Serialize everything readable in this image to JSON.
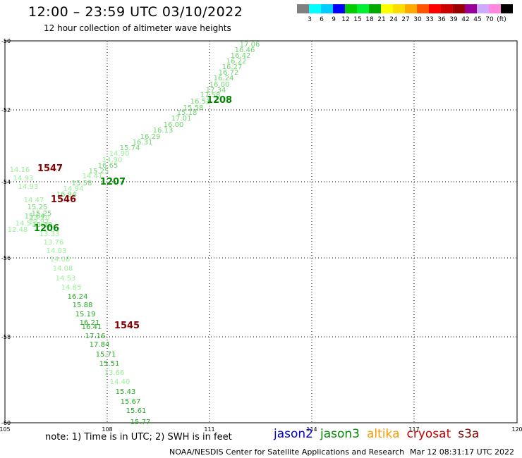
{
  "header": {
    "title": "12:00 – 23:59 UTC 03/10/2022",
    "subtitle": "12 hour collection of altimeter wave heights"
  },
  "colorbar": {
    "colors": [
      "#808080",
      "#00ffff",
      "#00ccff",
      "#0000ff",
      "#00cc00",
      "#00ee33",
      "#00aa00",
      "#ffff00",
      "#ffdd00",
      "#ffaa00",
      "#ff5500",
      "#ff0000",
      "#cc0000",
      "#990000",
      "#990099",
      "#ccaaff",
      "#ff88dd",
      "#000000"
    ],
    "labels": [
      "3",
      "6",
      "9",
      "12",
      "15",
      "18",
      "21",
      "24",
      "27",
      "30",
      "33",
      "36",
      "39",
      "42",
      "45",
      "70",
      "(ft)"
    ]
  },
  "map": {
    "lat_labels": [
      "-50",
      "-52",
      "-54",
      "-56",
      "-58",
      "-60"
    ],
    "lon_labels": [
      "105",
      "108",
      "111",
      "114",
      "117",
      "120"
    ]
  },
  "track_points": [
    {
      "text": "17.06",
      "color": "#6cd66c"
    },
    {
      "text": "16.46",
      "color": "#6cd66c"
    },
    {
      "text": "16.42",
      "color": "#6cd66c"
    },
    {
      "text": "16.22",
      "color": "#6cd66c"
    },
    {
      "text": "16.27",
      "color": "#6cd66c"
    },
    {
      "text": "16.72",
      "color": "#6cd66c"
    },
    {
      "text": "16.24",
      "color": "#6cd66c"
    },
    {
      "text": "16.00",
      "color": "#6cd66c"
    },
    {
      "text": "17.34",
      "color": "#6cd66c"
    },
    {
      "text": "17.58",
      "color": "#6cd66c"
    },
    {
      "text": "16.51",
      "color": "#6cd66c"
    },
    {
      "text": "15.58",
      "color": "#6cd66c"
    },
    {
      "text": "15.18",
      "color": "#6cd66c"
    },
    {
      "text": "17.01",
      "color": "#6cd66c"
    },
    {
      "text": "16.00",
      "color": "#6cd66c"
    },
    {
      "text": "16.13",
      "color": "#6cd66c"
    },
    {
      "text": "16.29",
      "color": "#6cd66c"
    },
    {
      "text": "16.31",
      "color": "#6cd66c"
    },
    {
      "text": "15.74",
      "color": "#6cd66c"
    },
    {
      "text": "14.90",
      "color": "#99ee99"
    },
    {
      "text": "14.90",
      "color": "#99ee99"
    },
    {
      "text": "16.65",
      "color": "#6cd66c"
    },
    {
      "text": "15.25",
      "color": "#6cd66c"
    },
    {
      "text": "14.41",
      "color": "#99ee99"
    },
    {
      "text": "15.58",
      "color": "#6cd66c"
    },
    {
      "text": "14.94",
      "color": "#99ee99"
    },
    {
      "text": "16.94",
      "color": "#6cd66c"
    },
    {
      "text": "14.16",
      "color": "#99ee99"
    },
    {
      "text": "14.93",
      "color": "#99ee99"
    },
    {
      "text": "14.93",
      "color": "#99ee99"
    },
    {
      "text": "14.47",
      "color": "#99ee99"
    },
    {
      "text": "15.25",
      "color": "#6cd66c"
    },
    {
      "text": "15.25",
      "color": "#6cd66c"
    },
    {
      "text": "13.20",
      "color": "#99ee99"
    },
    {
      "text": "15.64",
      "color": "#6cd66c"
    },
    {
      "text": "15.30",
      "color": "#6cd66c"
    },
    {
      "text": "14.53",
      "color": "#99ee99"
    },
    {
      "text": "12.93",
      "color": "#99ee99"
    },
    {
      "text": "12.48",
      "color": "#99ee99"
    },
    {
      "text": "13.33",
      "color": "#99ee99"
    },
    {
      "text": "13.76",
      "color": "#99ee99"
    },
    {
      "text": "14.03",
      "color": "#99ee99"
    },
    {
      "text": "14.08",
      "color": "#99ee99"
    },
    {
      "text": "14.08",
      "color": "#99ee99"
    },
    {
      "text": "14.53",
      "color": "#99ee99"
    },
    {
      "text": "14.85",
      "color": "#99ee99"
    },
    {
      "text": "16.24",
      "color": "#22aa22"
    },
    {
      "text": "15.88",
      "color": "#22aa22"
    },
    {
      "text": "15.19",
      "color": "#22aa22"
    },
    {
      "text": "16.21",
      "color": "#22aa22"
    },
    {
      "text": "16.41",
      "color": "#22aa22"
    },
    {
      "text": "17.16",
      "color": "#22aa22"
    },
    {
      "text": "17.84",
      "color": "#22aa22"
    },
    {
      "text": "15.71",
      "color": "#22aa22"
    },
    {
      "text": "15.51",
      "color": "#22aa22"
    },
    {
      "text": "13.66",
      "color": "#99ee99"
    },
    {
      "text": "14.40",
      "color": "#99ee99"
    },
    {
      "text": "15.43",
      "color": "#22aa22"
    },
    {
      "text": "15.67",
      "color": "#22aa22"
    },
    {
      "text": "15.61",
      "color": "#22aa22"
    },
    {
      "text": "15.77",
      "color": "#22aa22"
    }
  ],
  "time_markers": [
    {
      "text": "1208",
      "color": "#008800"
    },
    {
      "text": "1547",
      "color": "#880000"
    },
    {
      "text": "1207",
      "color": "#008800"
    },
    {
      "text": "1546",
      "color": "#880000"
    },
    {
      "text": "1206",
      "color": "#008800"
    },
    {
      "text": "1545",
      "color": "#880000"
    }
  ],
  "footer": {
    "note": "note: 1) Time is in UTC; 2) SWH is in feet",
    "legend": [
      {
        "text": "jason2",
        "color": "#0000cc"
      },
      {
        "text": "jason3",
        "color": "#008800"
      },
      {
        "text": "altika",
        "color": "#ff9900"
      },
      {
        "text": "cryosat",
        "color": "#cc0000"
      },
      {
        "text": "s3a",
        "color": "#880000"
      }
    ],
    "credit": "NOAA/NESDIS Center for Satellite Applications and Research",
    "timestamp": "Mar 12 08:31:17 UTC 2022"
  }
}
